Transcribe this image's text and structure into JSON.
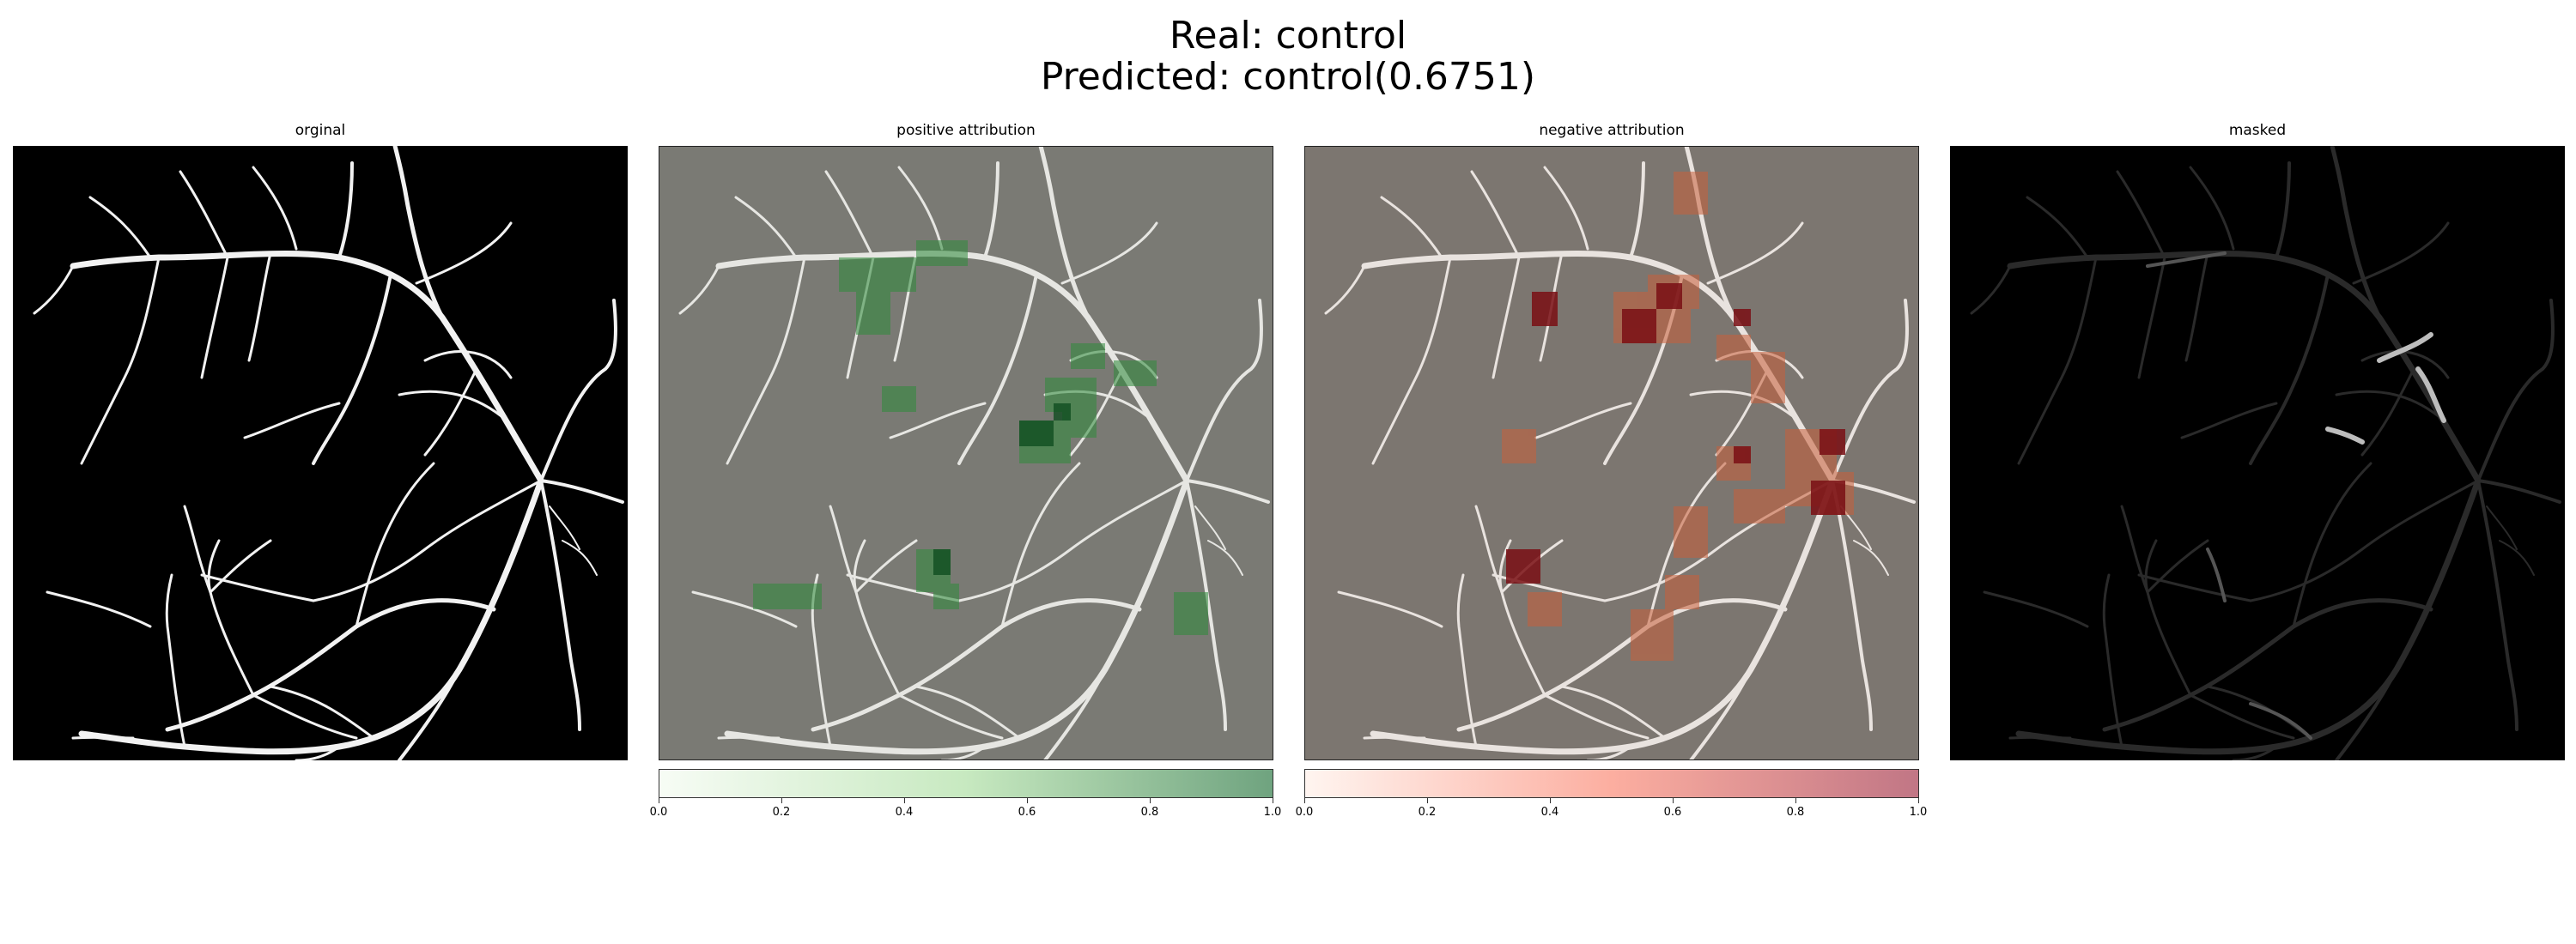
{
  "figure": {
    "title_line1": "Real: control",
    "title_line2": "Predicted: control(0.6751)"
  },
  "panels": [
    {
      "title": "orginal"
    },
    {
      "title": "positive attribution"
    },
    {
      "title": "negative attribution"
    },
    {
      "title": "masked"
    }
  ],
  "colorbars": {
    "positive": {
      "ticks": [
        "0.0",
        "0.2",
        "0.4",
        "0.6",
        "0.8",
        "1.0"
      ],
      "color_low": "#f7fcf5",
      "color_high": "#6fa37f"
    },
    "negative": {
      "ticks": [
        "0.0",
        "0.2",
        "0.4",
        "0.6",
        "0.8",
        "1.0"
      ],
      "color_low": "#fff5f0",
      "color_high": "#c17685"
    }
  },
  "colors": {
    "overlay_gray": "#7a7a74",
    "vessel": "#ffffff",
    "mask_background": "#000000"
  }
}
